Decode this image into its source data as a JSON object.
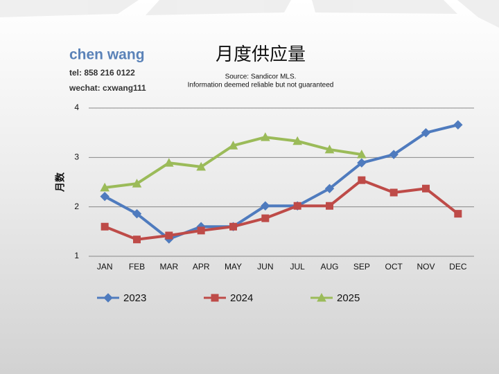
{
  "header": {
    "name": "chen wang",
    "tel": "tel: 858 216 0122",
    "wechat": "wechat: cxwang111"
  },
  "chart_data": {
    "type": "line",
    "title": "月度供应量",
    "subtitle": [
      "Source: Sandicor MLS.",
      "Information deemed reliable but not guaranteed"
    ],
    "y_label": "月数",
    "categories": [
      "JAN",
      "FEB",
      "MAR",
      "APR",
      "MAY",
      "JUN",
      "JUL",
      "AUG",
      "SEP",
      "OCT",
      "NOV",
      "DEC"
    ],
    "series": [
      {
        "name": "2023",
        "color": "#4f7bbe",
        "marker": "diamond",
        "values": [
          2.21,
          1.86,
          1.35,
          1.6,
          1.6,
          2.02,
          2.02,
          2.37,
          2.89,
          3.06,
          3.5,
          3.66
        ]
      },
      {
        "name": "2024",
        "color": "#be4b48",
        "marker": "square",
        "values": [
          1.6,
          1.34,
          1.42,
          1.52,
          1.6,
          1.77,
          2.02,
          2.02,
          2.54,
          2.29,
          2.37,
          1.86
        ]
      },
      {
        "name": "2025",
        "color": "#9bbb59",
        "marker": "triangle",
        "values": [
          2.39,
          2.47,
          2.89,
          2.81,
          3.24,
          3.41,
          3.33,
          3.16,
          3.06,
          null,
          null,
          null
        ]
      }
    ],
    "ylim": [
      1,
      4
    ],
    "yticks": [
      1,
      2,
      3,
      4
    ],
    "grid": true,
    "legend": "bottom"
  }
}
